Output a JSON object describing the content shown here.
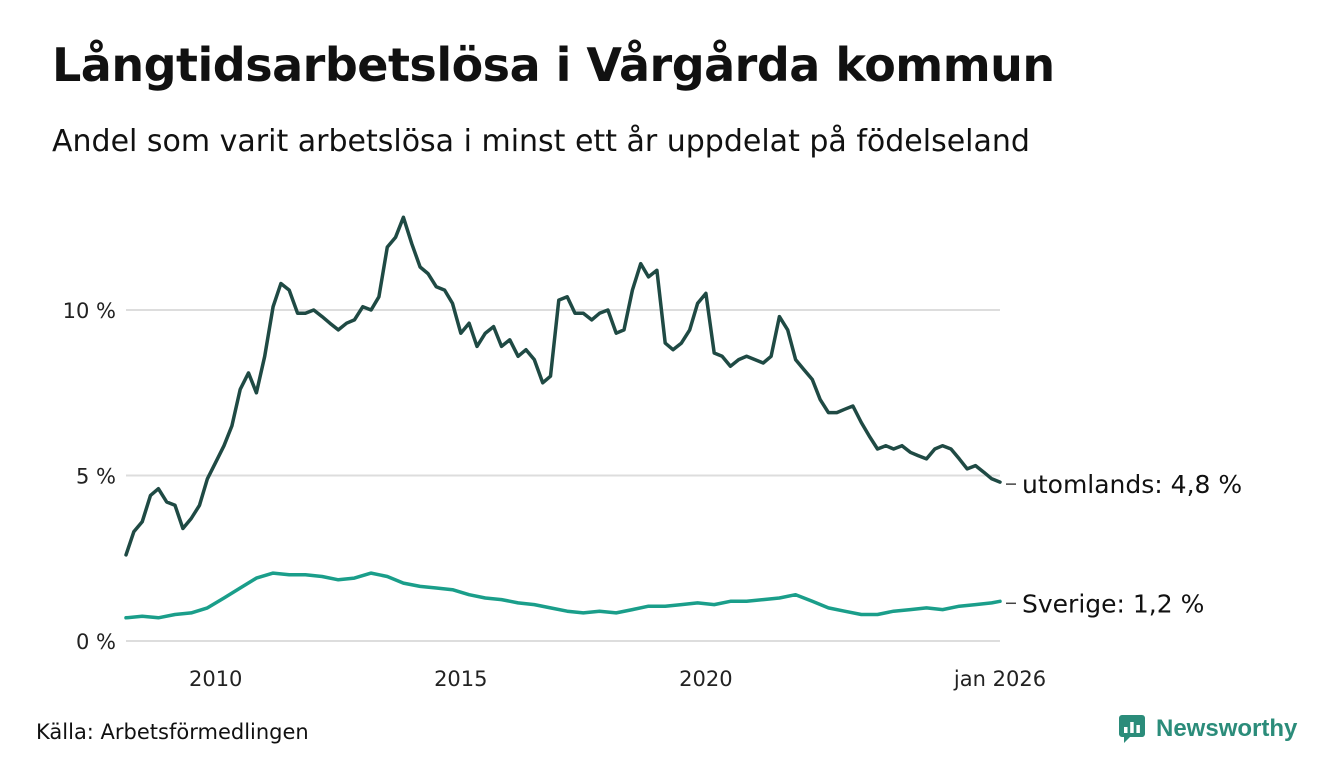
{
  "title": "Långtidsarbetslösa i Vårgårda kommun",
  "subtitle": "Andel som varit arbetslösa i minst ett år uppdelat på födelseland",
  "source": "Källa: Arbetsförmedlingen",
  "brand": {
    "name": "Newsworthy",
    "icon": "newsworthy-logo-icon",
    "color": "#2b8c7a"
  },
  "chart_data": {
    "type": "line",
    "title": "Långtidsarbetslösa i Vårgårda kommun",
    "subtitle": "Andel som varit arbetslösa i minst ett år uppdelat på födelseland",
    "xlabel": "",
    "ylabel": "",
    "xlim": [
      2008.17,
      2026.0
    ],
    "ylim": [
      0,
      13
    ],
    "grid": true,
    "y_ticks": [
      {
        "value": 0,
        "label": "0 %"
      },
      {
        "value": 5,
        "label": "5 %"
      },
      {
        "value": 10,
        "label": "10 %"
      }
    ],
    "x_ticks": [
      {
        "value": 2010,
        "label": "2010"
      },
      {
        "value": 2015,
        "label": "2015"
      },
      {
        "value": 2020,
        "label": "2020"
      },
      {
        "value": 2026,
        "label": "jan 2026"
      }
    ],
    "series": [
      {
        "name": "utomlands",
        "end_label": "utomlands: 4,8 %",
        "color": "#1f4a44",
        "x": [
          2008.17,
          2008.33,
          2008.5,
          2008.67,
          2008.83,
          2009.0,
          2009.17,
          2009.33,
          2009.5,
          2009.67,
          2009.83,
          2010.0,
          2010.17,
          2010.33,
          2010.5,
          2010.67,
          2010.83,
          2011.0,
          2011.17,
          2011.33,
          2011.5,
          2011.67,
          2011.83,
          2012.0,
          2012.17,
          2012.33,
          2012.5,
          2012.67,
          2012.83,
          2013.0,
          2013.17,
          2013.33,
          2013.5,
          2013.67,
          2013.83,
          2014.0,
          2014.17,
          2014.33,
          2014.5,
          2014.67,
          2014.83,
          2015.0,
          2015.17,
          2015.33,
          2015.5,
          2015.67,
          2015.83,
          2016.0,
          2016.17,
          2016.33,
          2016.5,
          2016.67,
          2016.83,
          2017.0,
          2017.17,
          2017.33,
          2017.5,
          2017.67,
          2017.83,
          2018.0,
          2018.17,
          2018.33,
          2018.5,
          2018.67,
          2018.83,
          2019.0,
          2019.17,
          2019.33,
          2019.5,
          2019.67,
          2019.83,
          2020.0,
          2020.17,
          2020.33,
          2020.5,
          2020.67,
          2020.83,
          2021.0,
          2021.17,
          2021.33,
          2021.5,
          2021.67,
          2021.83,
          2022.0,
          2022.17,
          2022.33,
          2022.5,
          2022.67,
          2022.83,
          2023.0,
          2023.17,
          2023.33,
          2023.5,
          2023.67,
          2023.83,
          2024.0,
          2024.17,
          2024.33,
          2024.5,
          2024.67,
          2024.83,
          2025.0,
          2025.17,
          2025.33,
          2025.5,
          2025.67,
          2025.83,
          2026.0
        ],
        "values": [
          2.6,
          3.3,
          3.6,
          4.4,
          4.6,
          4.2,
          4.1,
          3.4,
          3.7,
          4.1,
          4.9,
          5.4,
          5.9,
          6.5,
          7.6,
          8.1,
          7.5,
          8.6,
          10.1,
          10.8,
          10.6,
          9.9,
          9.9,
          10.0,
          9.8,
          9.6,
          9.4,
          9.6,
          9.7,
          10.1,
          10.0,
          10.4,
          11.9,
          12.2,
          12.8,
          12.0,
          11.3,
          11.1,
          10.7,
          10.6,
          10.2,
          9.3,
          9.6,
          8.9,
          9.3,
          9.5,
          8.9,
          9.1,
          8.6,
          8.8,
          8.5,
          7.8,
          8.0,
          10.3,
          10.4,
          9.9,
          9.9,
          9.7,
          9.9,
          10.0,
          9.3,
          9.4,
          10.6,
          11.4,
          11.0,
          11.2,
          9.0,
          8.8,
          9.0,
          9.4,
          10.2,
          10.5,
          8.7,
          8.6,
          8.3,
          8.5,
          8.6,
          8.5,
          8.4,
          8.6,
          9.8,
          9.4,
          8.5,
          8.2,
          7.9,
          7.3,
          6.9,
          6.9,
          7.0,
          7.1,
          6.6,
          6.2,
          5.8,
          5.9,
          5.8,
          5.9,
          5.7,
          5.6,
          5.5,
          5.8,
          5.9,
          5.8,
          5.5,
          5.2,
          5.3,
          5.1,
          4.9,
          4.8
        ]
      },
      {
        "name": "Sverige",
        "end_label": "Sverige: 1,2 %",
        "color": "#1a9e8a",
        "x": [
          2008.17,
          2008.5,
          2008.83,
          2009.17,
          2009.5,
          2009.83,
          2010.17,
          2010.5,
          2010.83,
          2011.17,
          2011.5,
          2011.83,
          2012.17,
          2012.5,
          2012.83,
          2013.17,
          2013.5,
          2013.83,
          2014.17,
          2014.5,
          2014.83,
          2015.17,
          2015.5,
          2015.83,
          2016.17,
          2016.5,
          2016.83,
          2017.17,
          2017.5,
          2017.83,
          2018.17,
          2018.5,
          2018.83,
          2019.17,
          2019.5,
          2019.83,
          2020.17,
          2020.5,
          2020.83,
          2021.17,
          2021.5,
          2021.83,
          2022.17,
          2022.5,
          2022.83,
          2023.17,
          2023.5,
          2023.83,
          2024.17,
          2024.5,
          2024.83,
          2025.17,
          2025.5,
          2025.83,
          2026.0
        ],
        "values": [
          0.7,
          0.75,
          0.7,
          0.8,
          0.85,
          1.0,
          1.3,
          1.6,
          1.9,
          2.05,
          2.0,
          2.0,
          1.95,
          1.85,
          1.9,
          2.05,
          1.95,
          1.75,
          1.65,
          1.6,
          1.55,
          1.4,
          1.3,
          1.25,
          1.15,
          1.1,
          1.0,
          0.9,
          0.85,
          0.9,
          0.85,
          0.95,
          1.05,
          1.05,
          1.1,
          1.15,
          1.1,
          1.2,
          1.2,
          1.25,
          1.3,
          1.4,
          1.2,
          1.0,
          0.9,
          0.8,
          0.8,
          0.9,
          0.95,
          1.0,
          0.95,
          1.05,
          1.1,
          1.15,
          1.2
        ]
      }
    ]
  }
}
